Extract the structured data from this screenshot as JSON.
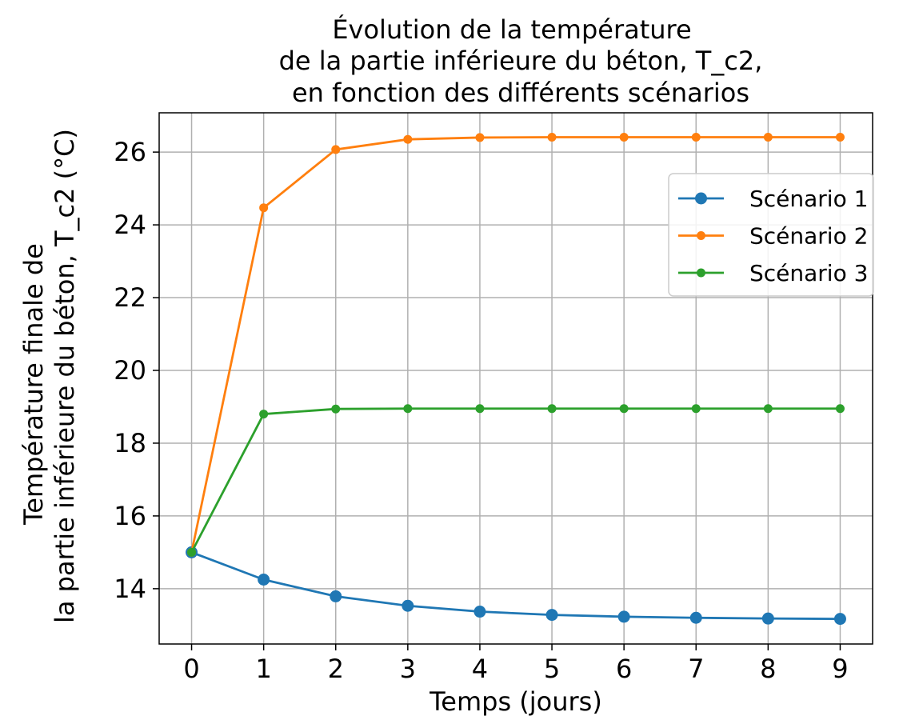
{
  "chart_data": {
    "type": "line",
    "title_lines": [
      "Évolution de la température",
      "de la partie inférieure du béton, T_c2,",
      "en fonction des différents scénarios"
    ],
    "xlabel": "Temps (jours)",
    "ylabel_lines": [
      "Température finale de",
      "la partie inférieure du béton, T_c2 (°C)"
    ],
    "x": [
      0,
      1,
      2,
      3,
      4,
      5,
      6,
      7,
      8,
      9
    ],
    "xticks": [
      "0",
      "1",
      "2",
      "3",
      "4",
      "5",
      "6",
      "7",
      "8",
      "9"
    ],
    "xlim": [
      -0.45,
      9.45
    ],
    "ylim": [
      12.48,
      27.08
    ],
    "yticks": [
      14,
      16,
      18,
      20,
      22,
      24,
      26
    ],
    "grid": true,
    "legend_position": "upper-right",
    "series": [
      {
        "name": "Scénario 1",
        "color": "#1f77b4",
        "marker": "large-circle",
        "values": [
          15.0,
          14.25,
          13.79,
          13.53,
          13.37,
          13.28,
          13.23,
          13.2,
          13.18,
          13.17
        ]
      },
      {
        "name": "Scénario 2",
        "color": "#ff7f0e",
        "marker": "small-circle",
        "values": [
          15.0,
          24.47,
          26.07,
          26.35,
          26.4,
          26.41,
          26.41,
          26.41,
          26.41,
          26.41
        ]
      },
      {
        "name": "Scénario 3",
        "color": "#2ca02c",
        "marker": "small-circle",
        "values": [
          15.0,
          18.8,
          18.94,
          18.95,
          18.95,
          18.95,
          18.95,
          18.95,
          18.95,
          18.95
        ]
      }
    ]
  }
}
